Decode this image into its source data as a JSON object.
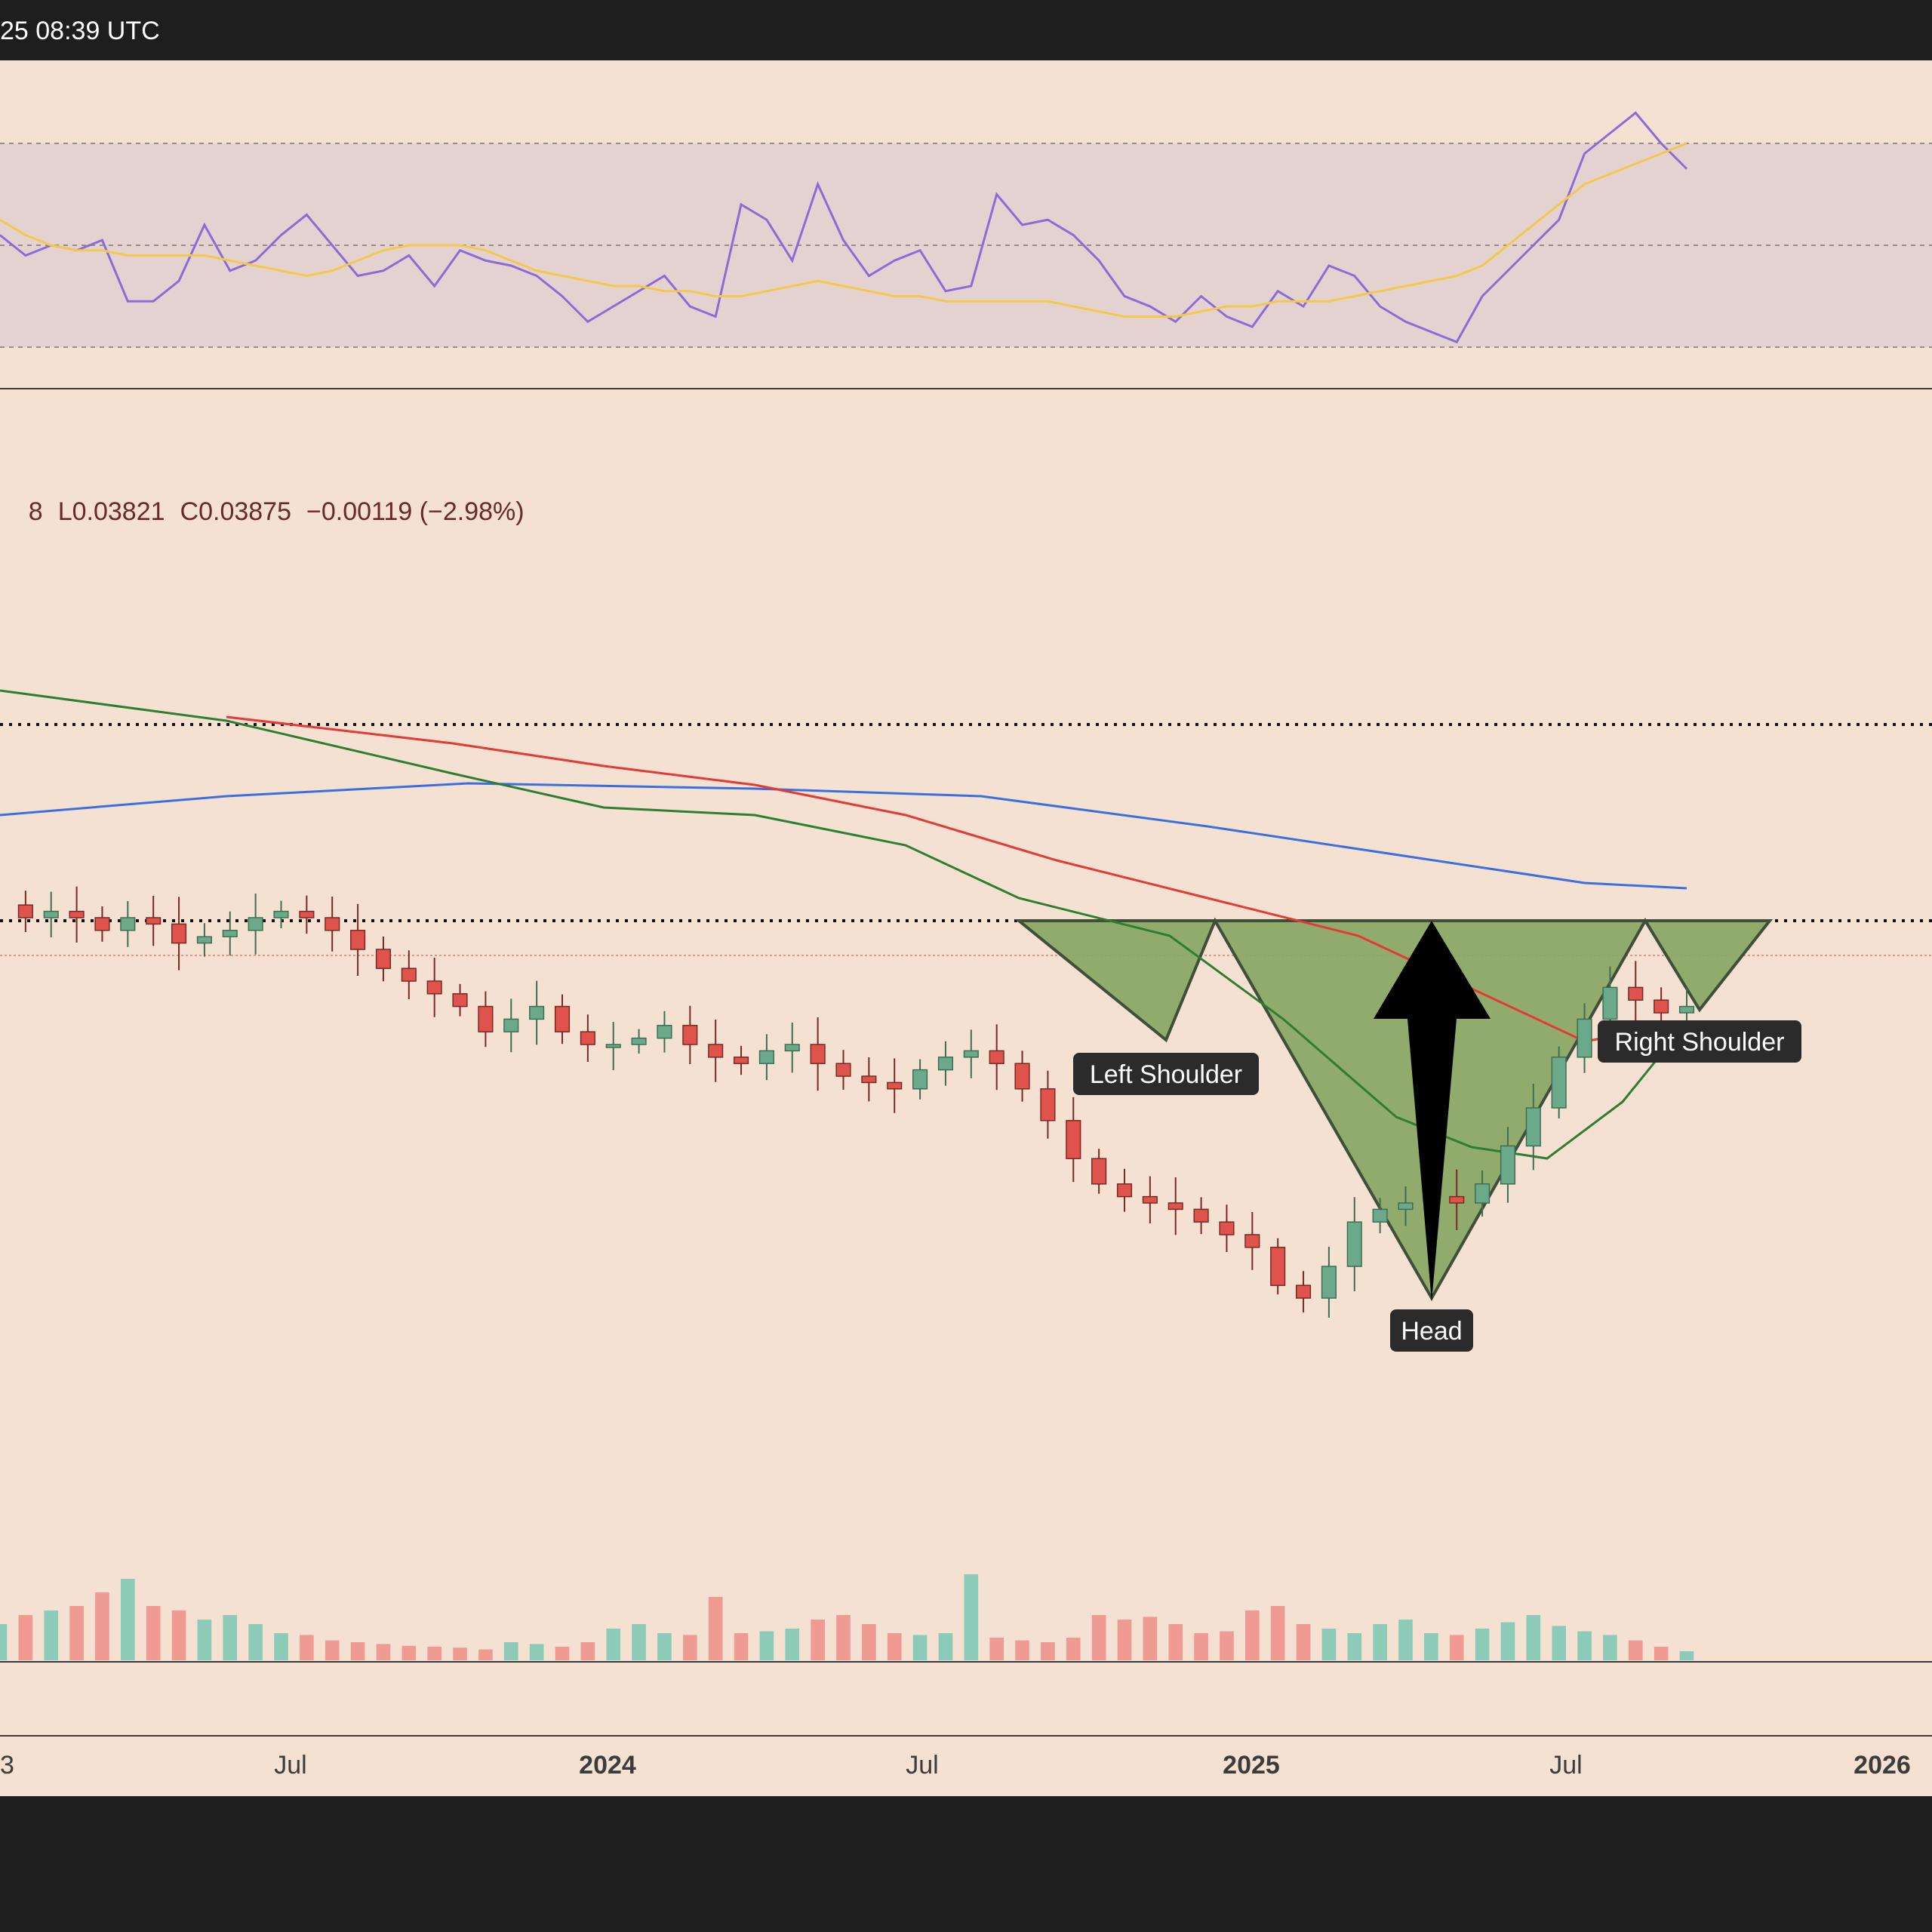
{
  "header": {
    "timestamp": "25 08:39 UTC"
  },
  "legend": {
    "open_partial": "8",
    "low": "L0.03821",
    "close": "C0.03875",
    "change": "−0.00119 (−2.98%)"
  },
  "colors": {
    "background": "#f4e1d2",
    "up_candle": "#6aaa8a",
    "down_candle": "#e0534d",
    "up_volume": "#8ccbb7",
    "down_volume": "#ef9b94",
    "rsi_line": "#8b6bd6",
    "rsi_ma": "#f2c94c",
    "ma_green": "#2e7d32",
    "ma_red": "#e53935",
    "ma_blue": "#3b6fe0",
    "pattern_fill": "#8aa865",
    "pattern_label_bg": "#2b2b2b"
  },
  "pattern_labels": {
    "left_shoulder": "Left Shoulder",
    "head": "Head",
    "right_shoulder": "Right Shoulder"
  },
  "chart_data": {
    "type": "candlestick",
    "timeframe": "weekly",
    "x_axis": {
      "tick_labels": [
        "3",
        "Jul",
        "2024",
        "Jul",
        "2025",
        "Jul",
        "2026"
      ],
      "bold_ticks": [
        "2024",
        "2025",
        "2026"
      ]
    },
    "price": {
      "last_close": 0.03875,
      "change": -0.00119,
      "change_pct": -2.98,
      "low": 0.03821,
      "levels": [
        {
          "name": "resistance-upper",
          "style": "dotted"
        },
        {
          "name": "neckline",
          "style": "dotted"
        }
      ],
      "approx_normalized_path": [
        0.62,
        0.6,
        0.61,
        0.6,
        0.58,
        0.6,
        0.59,
        0.56,
        0.57,
        0.58,
        0.6,
        0.61,
        0.6,
        0.58,
        0.55,
        0.52,
        0.5,
        0.48,
        0.46,
        0.42,
        0.44,
        0.46,
        0.42,
        0.4,
        0.4,
        0.41,
        0.43,
        0.4,
        0.38,
        0.37,
        0.39,
        0.4,
        0.37,
        0.35,
        0.34,
        0.33,
        0.36,
        0.38,
        0.39,
        0.37,
        0.33,
        0.28,
        0.22,
        0.18,
        0.16,
        0.15,
        0.14,
        0.12,
        0.1,
        0.08,
        0.02,
        0.0,
        0.05,
        0.12,
        0.14,
        0.15,
        0.16,
        0.15,
        0.18,
        0.24,
        0.3,
        0.38,
        0.44,
        0.49,
        0.47,
        0.45,
        0.46
      ]
    },
    "moving_averages": [
      {
        "name": "MA-short",
        "color": "#2e7d32"
      },
      {
        "name": "MA-mid",
        "color": "#e53935"
      },
      {
        "name": "MA-long",
        "color": "#3b6fe0"
      }
    ],
    "pattern": {
      "type": "inverse head and shoulders",
      "parts": [
        "Left Shoulder",
        "Head",
        "Right Shoulder"
      ]
    },
    "rsi": {
      "bands": [
        30,
        50,
        70
      ],
      "approx_values": [
        52,
        48,
        50,
        49,
        51,
        39,
        39,
        43,
        54,
        45,
        47,
        52,
        56,
        50,
        44,
        45,
        48,
        42,
        49,
        47,
        46,
        44,
        40,
        35,
        38,
        41,
        44,
        38,
        36,
        58,
        55,
        47,
        62,
        51,
        44,
        47,
        49,
        41,
        42,
        60,
        54,
        55,
        52,
        47,
        40,
        38,
        35,
        40,
        36,
        34,
        41,
        38,
        46,
        44,
        38,
        35,
        33,
        31,
        40,
        45,
        50,
        55,
        68,
        72,
        76,
        70,
        65
      ],
      "ma_approx": [
        55,
        52,
        50,
        49,
        49,
        48,
        48,
        48,
        48,
        47,
        46,
        45,
        44,
        45,
        47,
        49,
        50,
        50,
        50,
        49,
        47,
        45,
        44,
        43,
        42,
        42,
        41,
        41,
        40,
        40,
        41,
        42,
        43,
        42,
        41,
        40,
        40,
        39,
        39,
        39,
        39,
        39,
        38,
        37,
        36,
        36,
        36,
        37,
        38,
        38,
        39,
        39,
        39,
        40,
        41,
        42,
        43,
        44,
        46,
        50,
        54,
        58,
        62,
        64,
        66,
        68,
        70
      ]
    },
    "volume": {
      "approx_relative": [
        0.4,
        0.5,
        0.55,
        0.6,
        0.75,
        0.9,
        0.6,
        0.55,
        0.45,
        0.5,
        0.4,
        0.3,
        0.28,
        0.22,
        0.2,
        0.18,
        0.16,
        0.15,
        0.14,
        0.12,
        0.2,
        0.18,
        0.15,
        0.2,
        0.35,
        0.4,
        0.3,
        0.28,
        0.7,
        0.3,
        0.32,
        0.35,
        0.45,
        0.5,
        0.4,
        0.3,
        0.28,
        0.3,
        0.95,
        0.25,
        0.22,
        0.2,
        0.25,
        0.5,
        0.45,
        0.48,
        0.4,
        0.3,
        0.32,
        0.55,
        0.6,
        0.4,
        0.35,
        0.3,
        0.4,
        0.45,
        0.3,
        0.28,
        0.35,
        0.42,
        0.5,
        0.38,
        0.32,
        0.28,
        0.22,
        0.15,
        0.1
      ]
    }
  }
}
